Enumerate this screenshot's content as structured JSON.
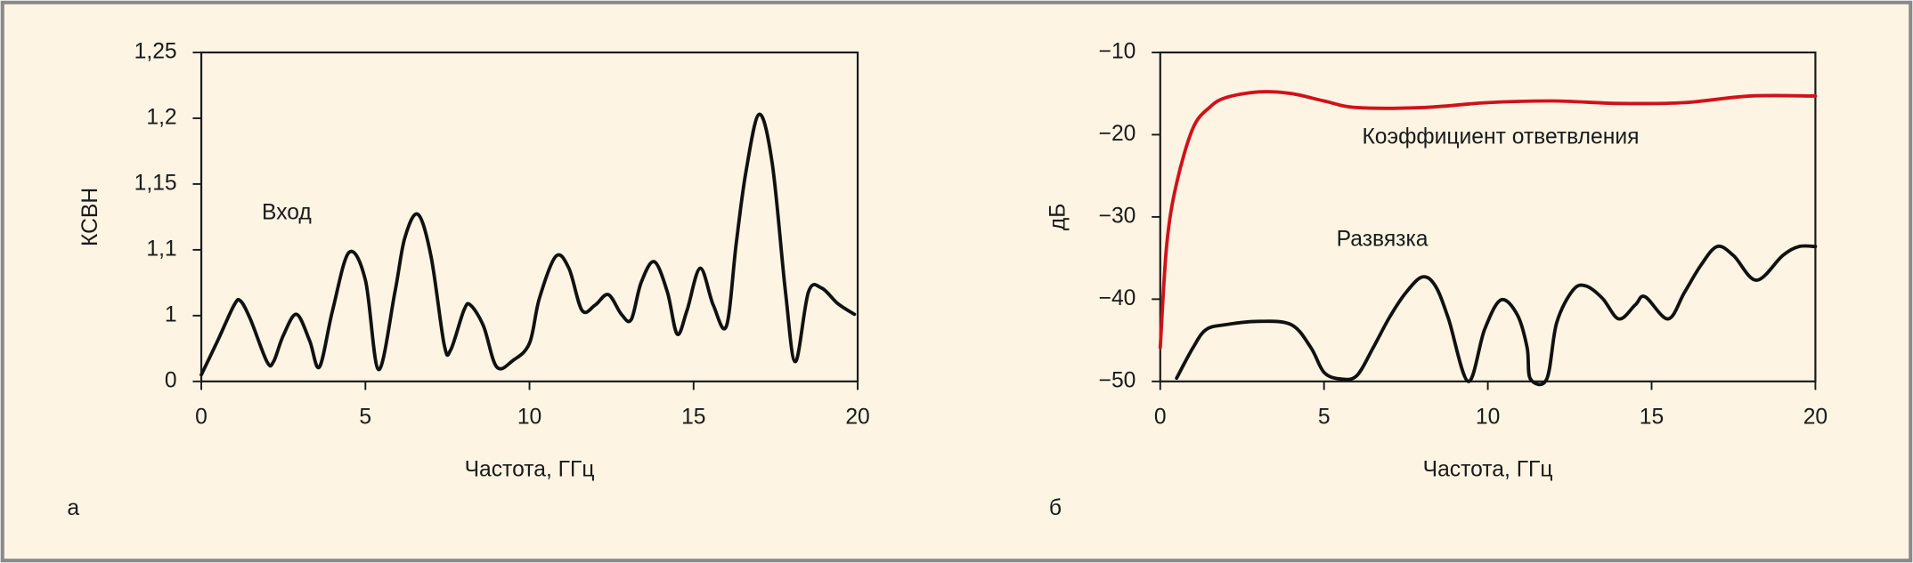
{
  "chart_data": [
    {
      "type": "line",
      "panel": "а",
      "x_label": "Частота, ГГц",
      "y_label": "КСВН",
      "xlim": [
        0,
        20
      ],
      "xticks": [
        0,
        5,
        10,
        15,
        20
      ],
      "ylim": [
        1.0,
        1.25
      ],
      "yticks": [
        {
          "value": 1.0,
          "label": "0"
        },
        {
          "value": 1.05,
          "label": "1"
        },
        {
          "value": 1.1,
          "label": "1,1"
        },
        {
          "value": 1.15,
          "label": "1,15"
        },
        {
          "value": 1.2,
          "label": "1,2"
        },
        {
          "value": 1.25,
          "label": "1,25"
        }
      ],
      "series": [
        {
          "name": "Вход",
          "color": "#111111",
          "x": [
            0,
            0.5,
            1.0,
            1.2,
            1.5,
            2.0,
            2.2,
            2.5,
            2.9,
            3.3,
            3.6,
            4.0,
            4.5,
            5.0,
            5.4,
            5.9,
            6.2,
            6.6,
            7.0,
            7.4,
            7.6,
            8.0,
            8.2,
            8.6,
            9.0,
            9.5,
            10.0,
            10.3,
            10.8,
            11.2,
            11.6,
            12.0,
            12.4,
            12.8,
            13.1,
            13.4,
            13.8,
            14.2,
            14.5,
            14.8,
            15.2,
            15.6,
            16.0,
            16.3,
            16.6,
            17.0,
            17.4,
            17.8,
            18.1,
            18.5,
            18.9,
            19.4,
            19.9
          ],
          "values": [
            1.005,
            1.031,
            1.058,
            1.061,
            1.047,
            1.015,
            1.015,
            1.035,
            1.051,
            1.031,
            1.011,
            1.054,
            1.098,
            1.077,
            1.009,
            1.068,
            1.109,
            1.127,
            1.095,
            1.028,
            1.024,
            1.054,
            1.058,
            1.042,
            1.011,
            1.016,
            1.029,
            1.063,
            1.095,
            1.086,
            1.054,
            1.058,
            1.066,
            1.051,
            1.047,
            1.075,
            1.091,
            1.068,
            1.036,
            1.054,
            1.086,
            1.058,
            1.042,
            1.105,
            1.16,
            1.203,
            1.165,
            1.068,
            1.015,
            1.068,
            1.071,
            1.059,
            1.051
          ]
        }
      ]
    },
    {
      "type": "line",
      "panel": "б",
      "x_label": "Частота, ГГц",
      "y_label": "дБ",
      "xlim": [
        0,
        20
      ],
      "xticks": [
        0,
        5,
        10,
        15,
        20
      ],
      "ylim": [
        -50,
        -10
      ],
      "yticks": [
        {
          "value": -50,
          "label": "−50"
        },
        {
          "value": -40,
          "label": "−40"
        },
        {
          "value": -30,
          "label": "−30"
        },
        {
          "value": -20,
          "label": "−20"
        },
        {
          "value": -10,
          "label": "−10"
        }
      ],
      "series": [
        {
          "name": "Коэффициент ответвления",
          "color": "#d0121b",
          "x": [
            0,
            0.2,
            0.5,
            1.0,
            1.5,
            2.0,
            3.0,
            4.0,
            5.0,
            6.0,
            8.0,
            10,
            12,
            14,
            16,
            18,
            20
          ],
          "values": [
            -45.9,
            -33.3,
            -25.9,
            -19.2,
            -16.7,
            -15.5,
            -14.8,
            -15,
            -15.9,
            -16.7,
            -16.7,
            -16.1,
            -15.9,
            -16.2,
            -16.1,
            -15.3,
            -15.3
          ]
        },
        {
          "name": "Развязка",
          "color": "#111111",
          "x": [
            0.5,
            1.0,
            1.4,
            2.0,
            3.0,
            4.0,
            4.6,
            5.0,
            5.5,
            6.0,
            6.5,
            7.0,
            7.5,
            8.0,
            8.4,
            8.8,
            9.4,
            9.9,
            10.4,
            10.9,
            11.2,
            11.3,
            11.8,
            12.1,
            12.6,
            13.0,
            13.5,
            14.0,
            14.5,
            14.8,
            15.5,
            16.0,
            16.5,
            17.0,
            17.5,
            18.2,
            19.0,
            19.5,
            20
          ],
          "values": [
            -49.6,
            -45.9,
            -43.7,
            -43.1,
            -42.7,
            -43.1,
            -45.9,
            -48.9,
            -49.7,
            -49.3,
            -45.9,
            -42.2,
            -39.2,
            -37.3,
            -38.4,
            -42.4,
            -50,
            -43.7,
            -40.1,
            -41.9,
            -45.9,
            -49.7,
            -49.7,
            -42.9,
            -38.9,
            -38.4,
            -39.9,
            -42.4,
            -40.7,
            -39.7,
            -42.4,
            -39.2,
            -35.9,
            -33.6,
            -34.7,
            -37.7,
            -34.7,
            -33.6,
            -33.6
          ]
        }
      ]
    }
  ]
}
